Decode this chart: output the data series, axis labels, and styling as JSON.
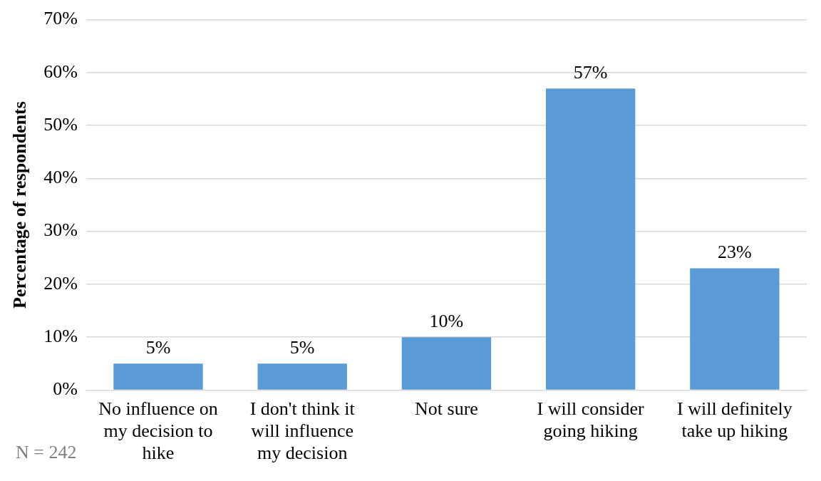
{
  "chart_data": {
    "type": "bar",
    "ylabel": "Percentage of respondents",
    "categories": [
      "No influence on my decision to hike",
      "I don't think it will influence my decision",
      "Not sure",
      "I will consider going hiking",
      "I will definitely take up hiking"
    ],
    "values": [
      5,
      5,
      10,
      57,
      23
    ],
    "value_labels": [
      "5%",
      "5%",
      "10%",
      "57%",
      "23%"
    ],
    "color": "#5b9bd5",
    "ylim": [
      0,
      70
    ],
    "yticks": [
      {
        "value": 0,
        "label": "0%"
      },
      {
        "value": 10,
        "label": "10%"
      },
      {
        "value": 20,
        "label": "20%"
      },
      {
        "value": 30,
        "label": "30%"
      },
      {
        "value": 40,
        "label": "40%"
      },
      {
        "value": 50,
        "label": "50%"
      },
      {
        "value": 60,
        "label": "60%"
      },
      {
        "value": 70,
        "label": "70%"
      }
    ],
    "grid": "y",
    "annotations": [
      "N = 242"
    ]
  }
}
